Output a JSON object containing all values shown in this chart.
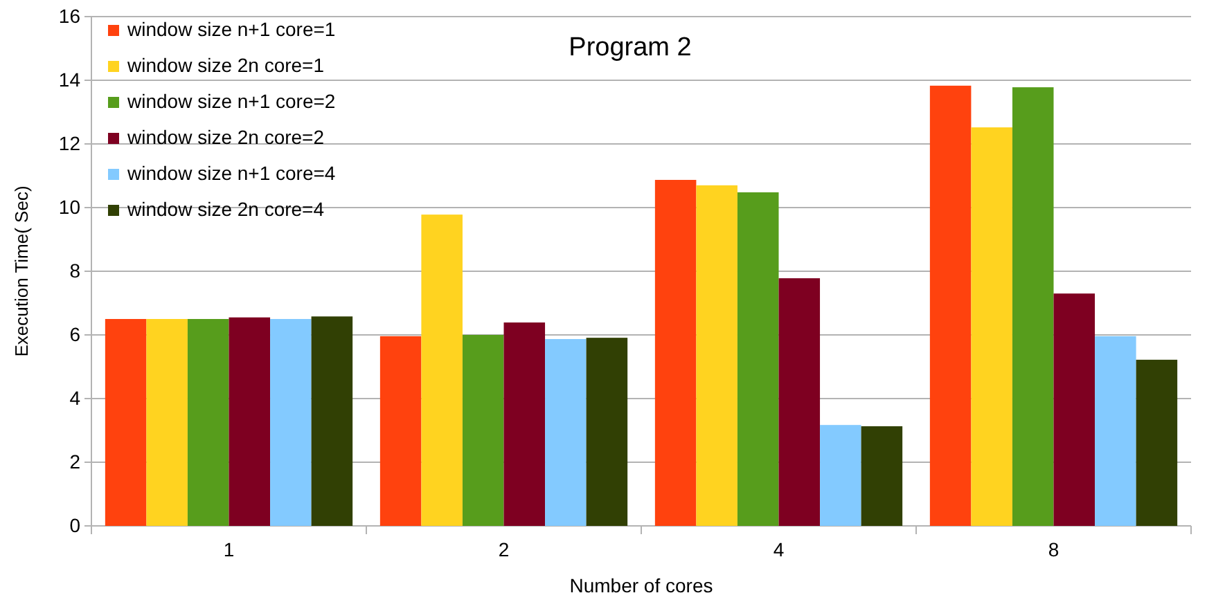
{
  "chart_data": {
    "type": "bar",
    "title": "Program 2",
    "xlabel": "Number of cores",
    "ylabel": "Execution Time( Sec)",
    "categories": [
      "1",
      "2",
      "4",
      "8"
    ],
    "series": [
      {
        "name": "window size n+1 core=1",
        "color": "#ff420e",
        "values": [
          6.5,
          5.96,
          10.87,
          13.83
        ]
      },
      {
        "name": "window size 2n core=1",
        "color": "#ffd320",
        "values": [
          6.5,
          9.78,
          10.7,
          12.52
        ]
      },
      {
        "name": "window size n+1 core=2",
        "color": "#579d1c",
        "values": [
          6.5,
          6.0,
          10.48,
          13.78
        ]
      },
      {
        "name": "window size 2n core=2",
        "color": "#7e0021",
        "values": [
          6.55,
          6.39,
          7.78,
          7.3
        ]
      },
      {
        "name": "window size n+1 core=4",
        "color": "#83caff",
        "values": [
          6.5,
          5.87,
          3.17,
          5.96
        ]
      },
      {
        "name": "window size 2n core=4",
        "color": "#314004",
        "values": [
          6.58,
          5.91,
          3.13,
          5.22
        ]
      }
    ],
    "ylim": [
      0,
      16
    ],
    "yticks": [
      0,
      2,
      4,
      6,
      8,
      10,
      12,
      14,
      16
    ],
    "grid": "y",
    "legend": "top left"
  }
}
